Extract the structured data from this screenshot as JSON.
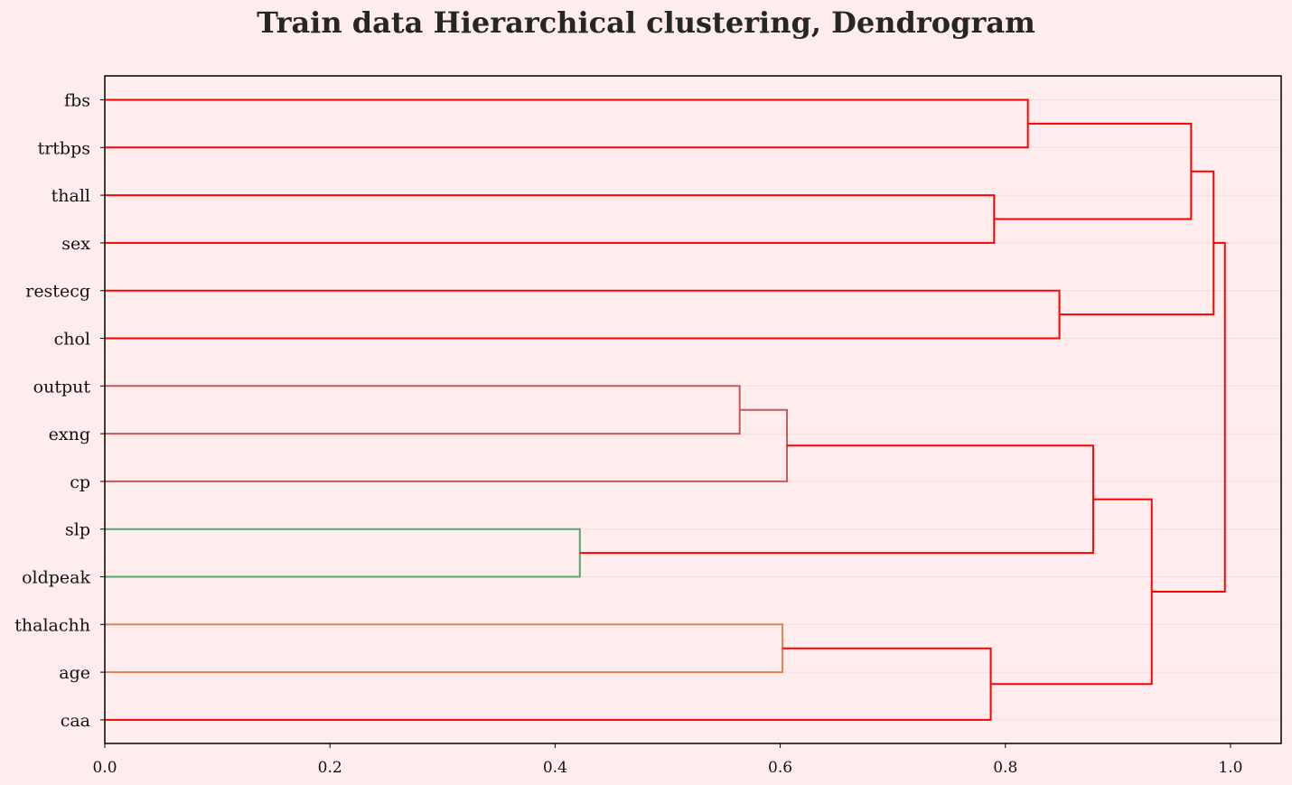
{
  "chart_data": {
    "type": "dendrogram",
    "title": "Train data Hierarchical clustering, Dendrogram",
    "orientation": "left",
    "xlim": [
      0.0,
      1.045
    ],
    "x_ticks": [
      0.0,
      0.2,
      0.4,
      0.6,
      0.8,
      1.0
    ],
    "x_tick_labels": [
      "0.0",
      "0.2",
      "0.4",
      "0.6",
      "0.8",
      "1.0"
    ],
    "leaves": [
      "fbs",
      "trtbps",
      "thall",
      "sex",
      "restecg",
      "chol",
      "output",
      "exng",
      "cp",
      "slp",
      "oldpeak",
      "thalachh",
      "age",
      "caa"
    ],
    "grid": true,
    "colors": {
      "background": "#ffeded",
      "above_threshold": "#ff0000",
      "cluster_1": "#c8575a",
      "cluster_2": "#55a868",
      "cluster_3": "#dd8452",
      "axes": "#000000",
      "grid": "#f3dcdc"
    },
    "merges": [
      {
        "left": "fbs",
        "right": "trtbps",
        "height": 0.82,
        "color": "above_threshold",
        "id": "A"
      },
      {
        "left": "thall",
        "right": "sex",
        "height": 0.79,
        "color": "above_threshold",
        "id": "B"
      },
      {
        "left": "A",
        "right": "B",
        "height": 0.965,
        "color": "above_threshold",
        "id": "C"
      },
      {
        "left": "restecg",
        "right": "chol",
        "height": 0.848,
        "color": "above_threshold",
        "id": "D"
      },
      {
        "left": "C",
        "right": "D",
        "height": 0.985,
        "color": "above_threshold",
        "id": "E"
      },
      {
        "left": "output",
        "right": "exng",
        "height": 0.564,
        "color": "cluster_1",
        "id": "F"
      },
      {
        "left": "F",
        "right": "cp",
        "height": 0.606,
        "color": "cluster_1",
        "id": "G"
      },
      {
        "left": "slp",
        "right": "oldpeak",
        "height": 0.422,
        "color": "cluster_2",
        "id": "H"
      },
      {
        "left": "G",
        "right": "H",
        "height": 0.878,
        "color": "above_threshold",
        "id": "I"
      },
      {
        "left": "thalachh",
        "right": "age",
        "height": 0.602,
        "color": "cluster_3",
        "id": "J"
      },
      {
        "left": "J",
        "right": "caa",
        "height": 0.787,
        "color": "above_threshold",
        "id": "K"
      },
      {
        "left": "I",
        "right": "K",
        "height": 0.93,
        "color": "above_threshold",
        "id": "L"
      },
      {
        "left": "E",
        "right": "L",
        "height": 0.995,
        "color": "above_threshold",
        "id": "M"
      }
    ]
  }
}
